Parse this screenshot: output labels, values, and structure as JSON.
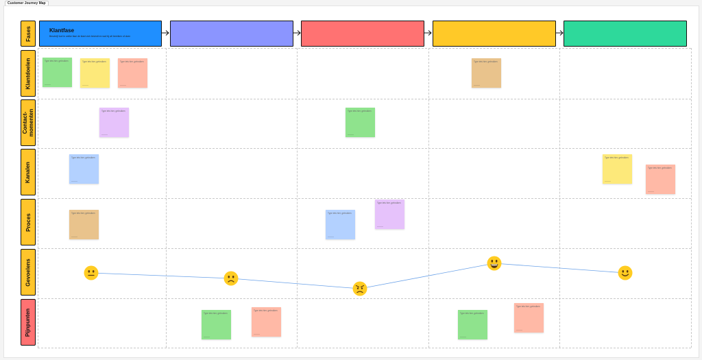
{
  "board": {
    "title": "Customer Journey Map"
  },
  "rows": {
    "fases": "Fases",
    "klantdoelen": "Klantdoelen",
    "contactmomenten": "Contact-\nmomenten",
    "kanalen": "Kanalen",
    "proces": "Proces",
    "gevoelens": "Gevoelens",
    "pijnpunten": "Pijnpunten"
  },
  "phases": [
    {
      "title": "Klantfase",
      "description": "Beschrijf kort in welke fase de klant zich bevindt en wat hij wil bereiken of doen",
      "color": "#1f8fff"
    },
    {
      "title": "",
      "description": "",
      "color": "#8b95ff"
    },
    {
      "title": "",
      "description": "",
      "color": "#ff7272"
    },
    {
      "title": "",
      "description": "",
      "color": "#ffc928"
    },
    {
      "title": "",
      "description": "",
      "color": "#2ed99b"
    }
  ],
  "note_text": "Type iets hier, gebruiken",
  "note_colors": {
    "green": "#8fe38d",
    "yellow": "#fde97a",
    "salmon": "#ffb9a6",
    "tan": "#e9c38c",
    "purple": "#e6c2fb",
    "blue": "#b3d1ff"
  },
  "emotions": [
    "neutral",
    "sad",
    "angry",
    "very-happy",
    "happy"
  ],
  "colors": {
    "row_label": "#ffc52b",
    "pain_label": "#ff7272",
    "line": "#6aa1e8"
  }
}
